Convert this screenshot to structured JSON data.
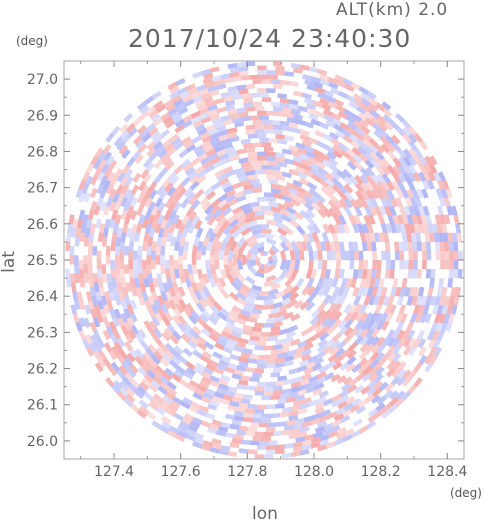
{
  "header": {
    "altitude_label": "ALT(km) 2.0",
    "timestamp": "2017/10/24 23:40:30"
  },
  "chart_data": {
    "type": "heatmap",
    "title": "2017/10/24 23:40:30",
    "xlabel": "lon",
    "ylabel": "lat",
    "x_unit": "(deg)",
    "y_unit": "(deg)",
    "xlim": [
      127.25,
      128.45
    ],
    "ylim": [
      25.95,
      27.05
    ],
    "x_ticks": [
      "127.4",
      "127.6",
      "127.8",
      "128.0",
      "128.2",
      "128.4"
    ],
    "x_tick_values": [
      127.4,
      127.6,
      127.8,
      128.0,
      128.2,
      128.4
    ],
    "y_ticks": [
      "26.0",
      "26.1",
      "26.2",
      "26.3",
      "26.4",
      "26.5",
      "26.6",
      "26.7",
      "26.8",
      "26.9",
      "27.0"
    ],
    "y_tick_values": [
      26.0,
      26.1,
      26.2,
      26.3,
      26.4,
      26.5,
      26.6,
      26.7,
      26.8,
      26.9,
      27.0
    ],
    "scan_center": {
      "lon": 127.85,
      "lat": 26.5
    },
    "scan_radius_deg": {
      "lon": 0.6,
      "lat": 0.55
    },
    "grid": false,
    "colors": {
      "positive": "#f4a0a0",
      "negative": "#a8aef4",
      "neutral": "#ffffff",
      "frame": "#aaaaaa"
    }
  }
}
